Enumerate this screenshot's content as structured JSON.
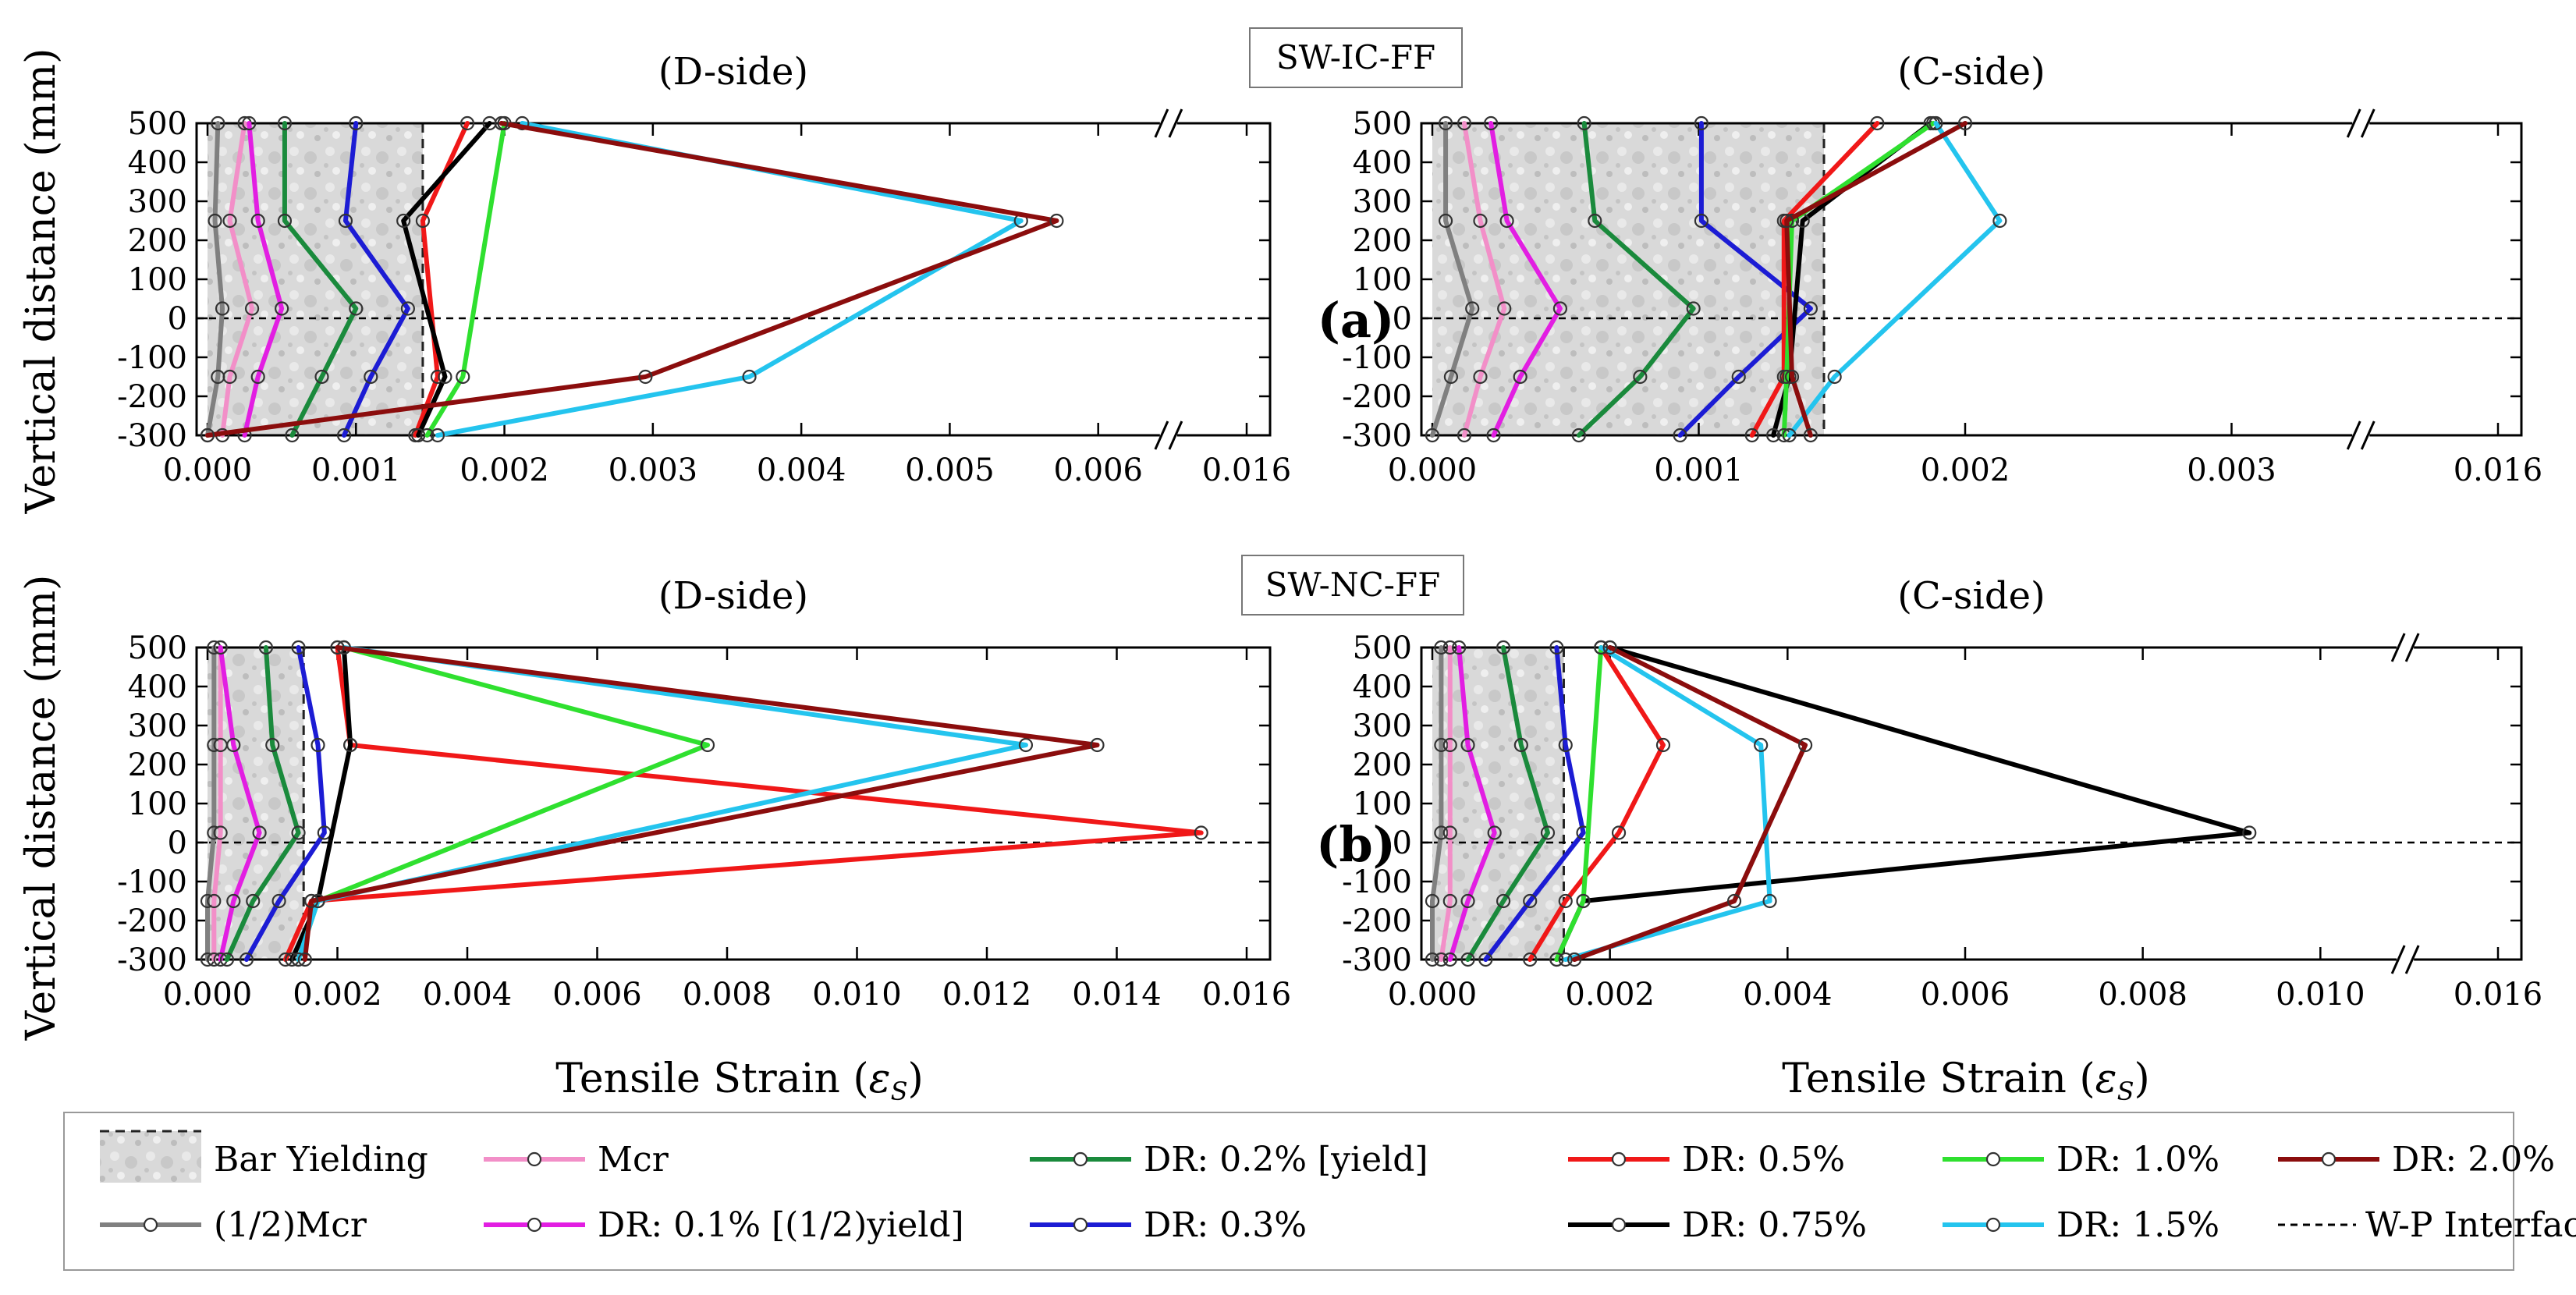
{
  "figure": {
    "ylabel": "Vertical distance (mm)",
    "xlabel_main": "Tensile Strain (",
    "xlabel_symbol": "ε",
    "xlabel_sub": "S",
    "xlabel_close": ")",
    "panel_letters": [
      "(a)",
      "(b)"
    ],
    "case_labels": [
      "SW-IC-FF",
      "SW-NC-FF"
    ]
  },
  "legend": {
    "entries": [
      {
        "label": "Bar Yielding",
        "kind": "patch",
        "color": "#d6d6d6"
      },
      {
        "label": "Mcr",
        "kind": "line",
        "color": "#f28fc8"
      },
      {
        "label": "DR: 0.2% [yield]",
        "kind": "line",
        "color": "#1a8a3c"
      },
      {
        "label": "DR: 0.5%",
        "kind": "line",
        "color": "#f01818"
      },
      {
        "label": "DR: 1.0%",
        "kind": "line",
        "color": "#2fe02f"
      },
      {
        "label": "DR: 2.0%",
        "kind": "line",
        "color": "#8b0d0d"
      },
      {
        "label": "(1/2)Mcr",
        "kind": "line",
        "color": "#808080"
      },
      {
        "label": "DR: 0.1% [(1/2)yield]",
        "kind": "line",
        "color": "#e21ee2"
      },
      {
        "label": "DR: 0.3%",
        "kind": "line",
        "color": "#1c1cd4"
      },
      {
        "label": "DR: 0.75%",
        "kind": "line",
        "color": "#000000"
      },
      {
        "label": "DR: 1.5%",
        "kind": "line",
        "color": "#24c4ee"
      },
      {
        "label": "W-P Interface",
        "kind": "dashed",
        "color": "#000000"
      }
    ]
  },
  "chart_data": [
    {
      "type": "line",
      "panel": "(a)",
      "case": "SW-IC-FF",
      "title": "(D-side)",
      "xlabel": "Tensile Strain (εS)",
      "ylabel": "Vertical distance (mm)",
      "ylim": [
        -300,
        500
      ],
      "yticks": [
        500,
        400,
        300,
        200,
        100,
        0,
        -100,
        -200,
        -300
      ],
      "x_break": true,
      "xticks": [
        0.0,
        0.001,
        0.002,
        0.003,
        0.004,
        0.005,
        0.006,
        0.016
      ],
      "xtick_labels": [
        "0.000",
        "0.001",
        "0.002",
        "0.003",
        "0.004",
        "0.005",
        "0.006",
        "0.016"
      ],
      "yield_strain": 0.00145,
      "interface_y": 0,
      "y": [
        500,
        250,
        25,
        -150,
        -300
      ],
      "series": [
        {
          "name": "(1/2)Mcr",
          "color": "#808080",
          "values": [
            7e-05,
            5e-05,
            0.0001,
            7e-05,
            0.0
          ]
        },
        {
          "name": "Mcr",
          "color": "#f28fc8",
          "values": [
            0.00025,
            0.00015,
            0.0003,
            0.00015,
            0.0001
          ]
        },
        {
          "name": "DR: 0.1% [(1/2)yield]",
          "color": "#e21ee2",
          "values": [
            0.00028,
            0.00034,
            0.0005,
            0.00034,
            0.00025
          ]
        },
        {
          "name": "DR: 0.2% [yield]",
          "color": "#1a8a3c",
          "values": [
            0.00052,
            0.00052,
            0.001,
            0.00077,
            0.00057
          ]
        },
        {
          "name": "DR: 0.3%",
          "color": "#1c1cd4",
          "values": [
            0.001,
            0.00093,
            0.00135,
            0.0011,
            0.00092
          ]
        },
        {
          "name": "DR: 0.5%",
          "color": "#f01818",
          "values": [
            0.00175,
            0.00145,
            null,
            0.00155,
            0.0014
          ]
        },
        {
          "name": "DR: 0.75%",
          "color": "#000000",
          "values": [
            0.0019,
            0.00132,
            null,
            0.0016,
            0.00142
          ]
        },
        {
          "name": "DR: 1.0%",
          "color": "#2fe02f",
          "values": [
            0.002,
            null,
            null,
            0.00172,
            0.00148
          ]
        },
        {
          "name": "DR: 1.5%",
          "color": "#24c4ee",
          "values": [
            0.00212,
            0.00548,
            null,
            0.00365,
            0.00155
          ]
        },
        {
          "name": "DR: 2.0%",
          "color": "#8b0d0d",
          "values": [
            0.00198,
            0.00572,
            null,
            0.00295,
            0.0
          ]
        }
      ]
    },
    {
      "type": "line",
      "panel": "(a)",
      "case": "SW-IC-FF",
      "title": "(C-side)",
      "xlabel": "Tensile Strain (εS)",
      "ylabel": "Vertical distance (mm)",
      "ylim": [
        -300,
        500
      ],
      "yticks": [
        500,
        400,
        300,
        200,
        100,
        0,
        -100,
        -200,
        -300
      ],
      "x_break": true,
      "xticks": [
        0.0,
        0.001,
        0.002,
        0.003,
        0.016
      ],
      "xtick_labels": [
        "0.000",
        "0.001",
        "0.002",
        "0.003",
        "0.016"
      ],
      "yield_strain": 0.00147,
      "interface_y": 0,
      "y": [
        500,
        250,
        25,
        -150,
        -300
      ],
      "series": [
        {
          "name": "(1/2)Mcr",
          "color": "#808080",
          "values": [
            5e-05,
            5e-05,
            0.00015,
            7e-05,
            0.0
          ]
        },
        {
          "name": "Mcr",
          "color": "#f28fc8",
          "values": [
            0.00012,
            0.00018,
            0.00027,
            0.00018,
            0.00012
          ]
        },
        {
          "name": "DR: 0.1% [(1/2)yield]",
          "color": "#e21ee2",
          "values": [
            0.00022,
            0.00028,
            0.00048,
            0.00033,
            0.00023
          ]
        },
        {
          "name": "DR: 0.2% [yield]",
          "color": "#1a8a3c",
          "values": [
            0.00057,
            0.00061,
            0.00098,
            0.00078,
            0.00055
          ]
        },
        {
          "name": "DR: 0.3%",
          "color": "#1c1cd4",
          "values": [
            0.00101,
            0.00101,
            0.00142,
            0.00115,
            0.00093
          ]
        },
        {
          "name": "DR: 0.5%",
          "color": "#f01818",
          "values": [
            0.00167,
            0.00132,
            null,
            0.00132,
            0.0012
          ]
        },
        {
          "name": "DR: 0.75%",
          "color": "#000000",
          "values": [
            0.00187,
            0.00139,
            null,
            0.00134,
            0.00128
          ]
        },
        {
          "name": "DR: 1.0%",
          "color": "#2fe02f",
          "values": [
            0.00188,
            0.00135,
            null,
            0.00133,
            0.00132
          ]
        },
        {
          "name": "DR: 1.5%",
          "color": "#24c4ee",
          "values": [
            0.00189,
            0.00213,
            null,
            0.00151,
            0.00134
          ]
        },
        {
          "name": "DR: 2.0%",
          "color": "#8b0d0d",
          "values": [
            0.002,
            0.00133,
            null,
            0.00135,
            0.00142
          ]
        }
      ]
    },
    {
      "type": "line",
      "panel": "(b)",
      "case": "SW-NC-FF",
      "title": "(D-side)",
      "xlabel": "Tensile Strain (εS)",
      "ylabel": "Vertical distance (mm)",
      "ylim": [
        -300,
        500
      ],
      "yticks": [
        500,
        400,
        300,
        200,
        100,
        0,
        -100,
        -200,
        -300
      ],
      "x_break": false,
      "xticks": [
        0.0,
        0.002,
        0.004,
        0.006,
        0.008,
        0.01,
        0.012,
        0.014,
        0.016
      ],
      "xtick_labels": [
        "0.000",
        "0.002",
        "0.004",
        "0.006",
        "0.008",
        "0.010",
        "0.012",
        "0.014",
        "0.016"
      ],
      "yield_strain": 0.00148,
      "interface_y": 0,
      "y": [
        500,
        250,
        25,
        -150,
        -300
      ],
      "series": [
        {
          "name": "(1/2)Mcr",
          "color": "#808080",
          "values": [
            0.0001,
            0.0001,
            0.0001,
            0.0,
            0.0
          ]
        },
        {
          "name": "Mcr",
          "color": "#f28fc8",
          "values": [
            0.0002,
            0.0002,
            0.0002,
            0.0001,
            0.0001
          ]
        },
        {
          "name": "DR: 0.1% [(1/2)yield]",
          "color": "#e21ee2",
          "values": [
            0.0002,
            0.0004,
            0.0008,
            0.0004,
            0.0002
          ]
        },
        {
          "name": "DR: 0.2% [yield]",
          "color": "#1a8a3c",
          "values": [
            0.0009,
            0.001,
            0.0014,
            0.0007,
            0.0003
          ]
        },
        {
          "name": "DR: 0.3%",
          "color": "#1c1cd4",
          "values": [
            0.0014,
            0.0017,
            0.0018,
            0.0011,
            0.0006
          ]
        },
        {
          "name": "DR: 0.5%",
          "color": "#f01818",
          "values": [
            0.002,
            0.0022,
            0.0153,
            0.0016,
            0.0012
          ]
        },
        {
          "name": "DR: 0.75%",
          "color": "#000000",
          "values": [
            0.0021,
            0.0022,
            null,
            0.0017,
            0.0013
          ]
        },
        {
          "name": "DR: 1.0%",
          "color": "#2fe02f",
          "values": [
            0.0021,
            0.0077,
            null,
            0.0017,
            0.0014
          ]
        },
        {
          "name": "DR: 1.5%",
          "color": "#24c4ee",
          "values": [
            0.0021,
            0.0126,
            null,
            0.0017,
            0.0014
          ]
        },
        {
          "name": "DR: 2.0%",
          "color": "#8b0d0d",
          "values": [
            0.002,
            0.0137,
            null,
            0.0016,
            0.0015
          ]
        }
      ]
    },
    {
      "type": "line",
      "panel": "(b)",
      "case": "SW-NC-FF",
      "title": "(C-side)",
      "xlabel": "Tensile Strain (εS)",
      "ylabel": "Vertical distance (mm)",
      "ylim": [
        -300,
        500
      ],
      "yticks": [
        500,
        400,
        300,
        200,
        100,
        0,
        -100,
        -200,
        -300
      ],
      "x_break": true,
      "xticks": [
        0.0,
        0.002,
        0.004,
        0.006,
        0.008,
        0.01,
        0.016
      ],
      "xtick_labels": [
        "0.000",
        "0.002",
        "0.004",
        "0.006",
        "0.008",
        "0.010",
        "0.016"
      ],
      "yield_strain": 0.00148,
      "interface_y": 0,
      "y": [
        500,
        250,
        25,
        -150,
        -300
      ],
      "series": [
        {
          "name": "(1/2)Mcr",
          "color": "#808080",
          "values": [
            0.0001,
            0.0001,
            0.0001,
            0.0,
            0.0
          ]
        },
        {
          "name": "Mcr",
          "color": "#f28fc8",
          "values": [
            0.0002,
            0.0002,
            0.0002,
            0.0002,
            0.0001
          ]
        },
        {
          "name": "DR: 0.1% [(1/2)yield]",
          "color": "#e21ee2",
          "values": [
            0.0003,
            0.0004,
            0.0007,
            0.0004,
            0.0002
          ]
        },
        {
          "name": "DR: 0.2% [yield]",
          "color": "#1a8a3c",
          "values": [
            0.0008,
            0.001,
            0.0013,
            0.0008,
            0.0004
          ]
        },
        {
          "name": "DR: 0.3%",
          "color": "#1c1cd4",
          "values": [
            0.0014,
            0.0015,
            0.0017,
            0.0011,
            0.0006
          ]
        },
        {
          "name": "DR: 0.5%",
          "color": "#f01818",
          "values": [
            0.0019,
            0.0026,
            0.0021,
            0.0015,
            0.0011
          ]
        },
        {
          "name": "DR: 0.75%",
          "color": "#000000",
          "values": [
            0.002,
            null,
            0.0092,
            0.0017,
            0.0014
          ]
        },
        {
          "name": "DR: 1.0%",
          "color": "#2fe02f",
          "values": [
            0.0019,
            null,
            null,
            0.0017,
            0.0014
          ]
        },
        {
          "name": "DR: 1.5%",
          "color": "#24c4ee",
          "values": [
            0.0019,
            0.0037,
            null,
            0.0038,
            0.0015
          ]
        },
        {
          "name": "DR: 2.0%",
          "color": "#8b0d0d",
          "values": [
            0.002,
            0.0042,
            null,
            0.0034,
            0.0016
          ]
        }
      ]
    }
  ]
}
